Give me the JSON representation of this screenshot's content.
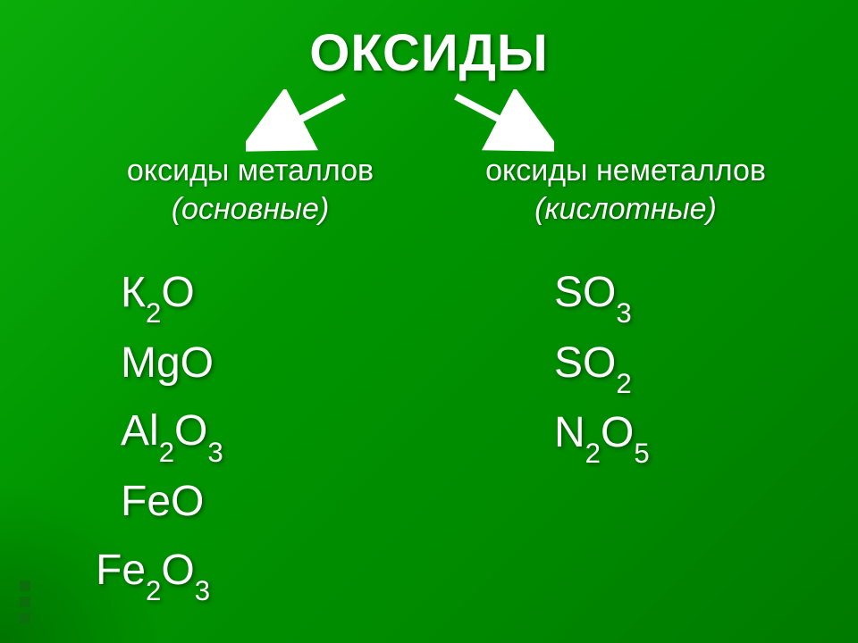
{
  "background": {
    "gradient_from": "#0aad0a",
    "gradient_to": "#007a00"
  },
  "title": "ОКСИДЫ",
  "title_fontsize": 58,
  "heading_fontsize": 34,
  "formula_fontsize": 48,
  "text_color": "#ffffff",
  "shadow_color": "#003000",
  "arrow_color": "#ffffff",
  "columns": {
    "left": {
      "heading": "оксиды металлов",
      "subtitle": "(основные)",
      "formulas": [
        {
          "parts": [
            "К",
            {
              "sub": "2"
            },
            "О"
          ]
        },
        {
          "parts": [
            "MgO"
          ]
        },
        {
          "parts": [
            "Al",
            {
              "sub": "2"
            },
            "O",
            {
              "sub": "3"
            }
          ]
        },
        {
          "parts": [
            "FeO"
          ]
        },
        {
          "parts": [
            "Fe",
            {
              "sub": "2"
            },
            "O",
            {
              "sub": "3"
            }
          ],
          "offset_left": true
        }
      ]
    },
    "right": {
      "heading": "оксиды неметаллов",
      "subtitle": "(кислотные)",
      "formulas": [
        {
          "parts": [
            "SO",
            {
              "sub": "3"
            }
          ]
        },
        {
          "parts": [
            "SO",
            {
              "sub": "2"
            }
          ]
        },
        {
          "parts": [
            "N",
            {
              "sub": "2"
            },
            "O",
            {
              "sub": "5"
            }
          ]
        }
      ]
    }
  }
}
